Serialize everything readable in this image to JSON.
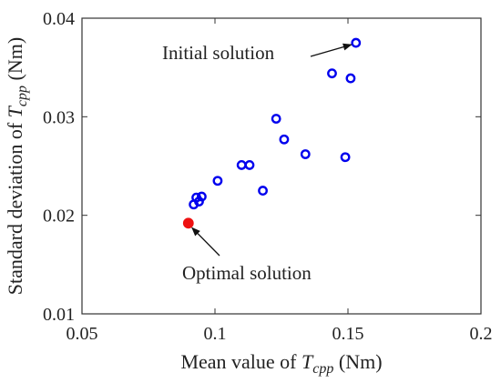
{
  "chart_data": {
    "type": "scatter",
    "title": "",
    "xlabel": {
      "prefix": "Mean value of ",
      "var": "T",
      "sub": "cpp",
      "suffix": " (Nm)"
    },
    "ylabel": {
      "prefix": "Standard deviation of ",
      "var": "T",
      "sub": "cpp",
      "suffix": " (Nm)"
    },
    "xlim": [
      0.05,
      0.2
    ],
    "ylim": [
      0.01,
      0.04
    ],
    "xticks": [
      0.05,
      0.1,
      0.15,
      0.2
    ],
    "yticks": [
      0.01,
      0.02,
      0.03,
      0.04
    ],
    "xtick_labels": [
      "0.05",
      "0.1",
      "0.15",
      "0.2"
    ],
    "ytick_labels": [
      "0.01",
      "0.02",
      "0.03",
      "0.04"
    ],
    "grid": false,
    "colors": {
      "points": "#0000ee",
      "optimal": "#ee1111",
      "axes": "#333333"
    },
    "series": [
      {
        "points": [
          [
            0.153,
            0.0375
          ],
          [
            0.144,
            0.0344
          ],
          [
            0.151,
            0.0339
          ],
          [
            0.123,
            0.0298
          ],
          [
            0.126,
            0.0277
          ],
          [
            0.134,
            0.0262
          ],
          [
            0.149,
            0.0259
          ],
          [
            0.11,
            0.0251
          ],
          [
            0.113,
            0.0251
          ],
          [
            0.101,
            0.0235
          ],
          [
            0.118,
            0.0225
          ],
          [
            0.095,
            0.0219
          ],
          [
            0.093,
            0.0218
          ],
          [
            0.094,
            0.0214
          ],
          [
            0.092,
            0.0211
          ],
          [
            0.09,
            0.0192
          ]
        ]
      },
      {
        "points": [
          [
            0.09,
            0.0192
          ]
        ]
      }
    ],
    "annotations": [
      {
        "text": "Initial solution",
        "target": [
          0.153,
          0.0375
        ]
      },
      {
        "text": "Optimal solution",
        "target": [
          0.09,
          0.0192
        ]
      }
    ]
  }
}
